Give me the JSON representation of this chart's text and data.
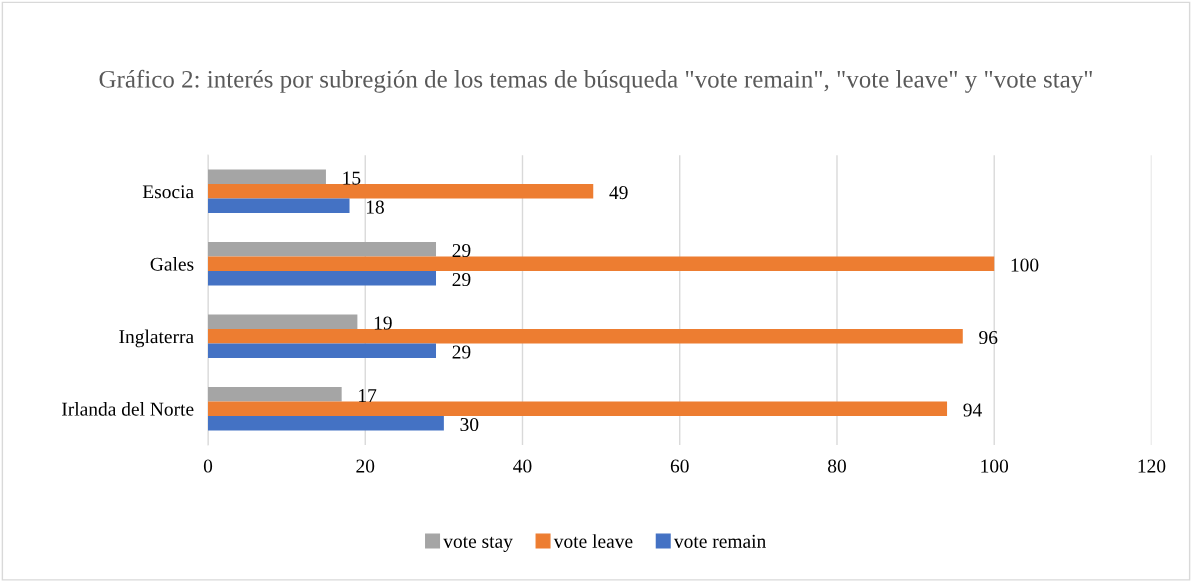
{
  "chart_data": {
    "type": "bar",
    "orientation": "horizontal",
    "title": "Gráfico 2: interés por subregión de los temas de búsqueda \"vote remain\", \"vote leave\" y \"vote stay\"",
    "categories": [
      "Esocia",
      "Gales",
      "Inglaterra",
      "Irlanda del Norte"
    ],
    "series": [
      {
        "name": "vote stay",
        "color": "#a5a5a5",
        "values": [
          15,
          29,
          19,
          17
        ]
      },
      {
        "name": "vote leave",
        "color": "#ed7d31",
        "values": [
          49,
          100,
          96,
          94
        ]
      },
      {
        "name": "vote remain",
        "color": "#4472c4",
        "values": [
          18,
          29,
          29,
          30
        ]
      }
    ],
    "xlim": [
      0,
      120
    ],
    "xticks": [
      0,
      20,
      40,
      60,
      80,
      100,
      120
    ],
    "grid": "x",
    "legend": "bottom",
    "data_labels": true
  }
}
